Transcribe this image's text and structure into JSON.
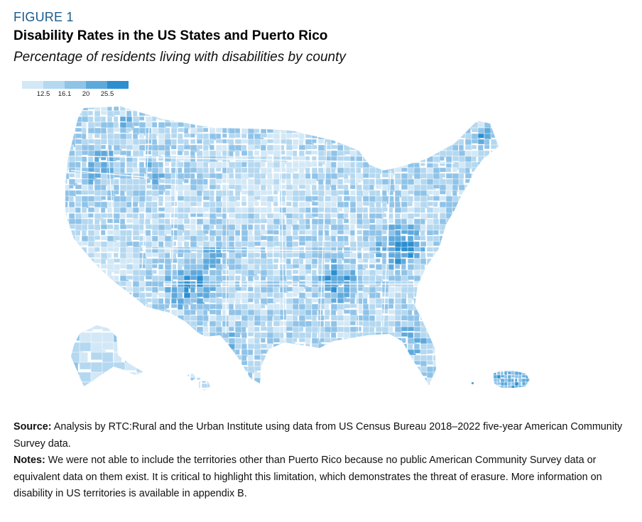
{
  "figure": {
    "label": "FIGURE 1",
    "title": "Disability Rates in the US States and Puerto Rico",
    "subtitle": "Percentage of residents living with disabilities by county"
  },
  "legend": {
    "ticks": [
      "12.5",
      "16.1",
      "20",
      "25.5"
    ],
    "colors": [
      "#d3e8f6",
      "#b4d8f0",
      "#8fc3e8",
      "#5ea9dc",
      "#2b8fd0"
    ]
  },
  "map": {
    "regions": [
      "Contiguous United States",
      "Alaska",
      "Hawaii",
      "Puerto Rico"
    ],
    "color_scale": [
      "#d3e8f6",
      "#b4d8f0",
      "#8fc3e8",
      "#5ea9dc",
      "#2b8fd0"
    ],
    "high_rate_areas": [
      "Appalachia (Kentucky, West Virginia)",
      "Southern Arkansas / Mississippi Delta",
      "New Mexico / Arizona",
      "Puerto Rico"
    ]
  },
  "footer": {
    "source_label": "Source:",
    "source_text": " Analysis by RTC:Rural and the Urban Institute using data from US Census Bureau 2018–2022 five-year American Community Survey data.",
    "notes_label": "Notes:",
    "notes_text": " We were not able to include the territories other than Puerto Rico because no public American Community Survey data or equivalent data on them exist. It is critical to highlight this limitation, which demonstrates the threat of erasure. More information on disability in US territories is available in appendix B."
  }
}
